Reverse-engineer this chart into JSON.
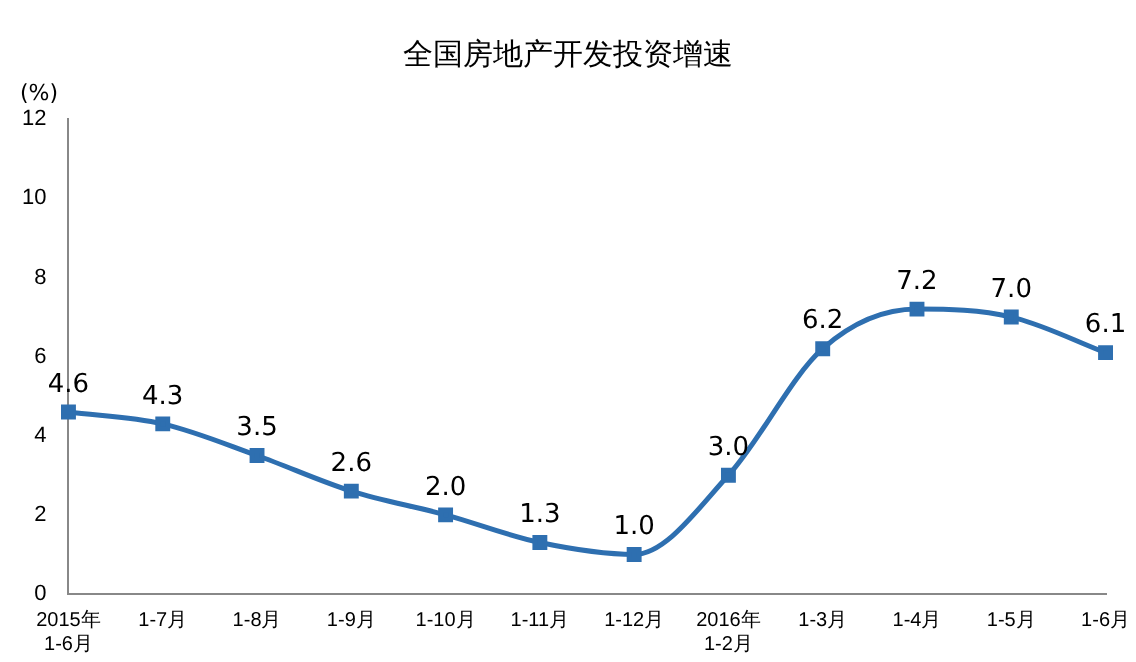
{
  "chart_data": {
    "type": "line",
    "title": "全国房地产开发投资增速",
    "ylabel": "(%)",
    "categories": [
      "2015年\n1-6月",
      "1-7月",
      "1-8月",
      "1-9月",
      "1-10月",
      "1-11月",
      "1-12月",
      "2016年\n1-2月",
      "1-3月",
      "1-4月",
      "1-5月",
      "1-6月"
    ],
    "series": [
      {
        "color": "#2e6fb0",
        "values": [
          4.6,
          4.3,
          3.5,
          2.6,
          2.0,
          1.3,
          1.0,
          3.0,
          6.2,
          7.2,
          7.0,
          6.1
        ],
        "value_labels": [
          "4.6",
          "4.3",
          "3.5",
          "2.6",
          "2.0",
          "1.3",
          "1.0",
          "3.0",
          "6.2",
          "7.2",
          "7.0",
          "6.1"
        ]
      }
    ],
    "ylim": [
      0,
      12
    ],
    "yticks": [
      0,
      2,
      4,
      6,
      8,
      10,
      12
    ],
    "grid": false,
    "legend": false,
    "marker": "square",
    "line_style": "solid"
  }
}
